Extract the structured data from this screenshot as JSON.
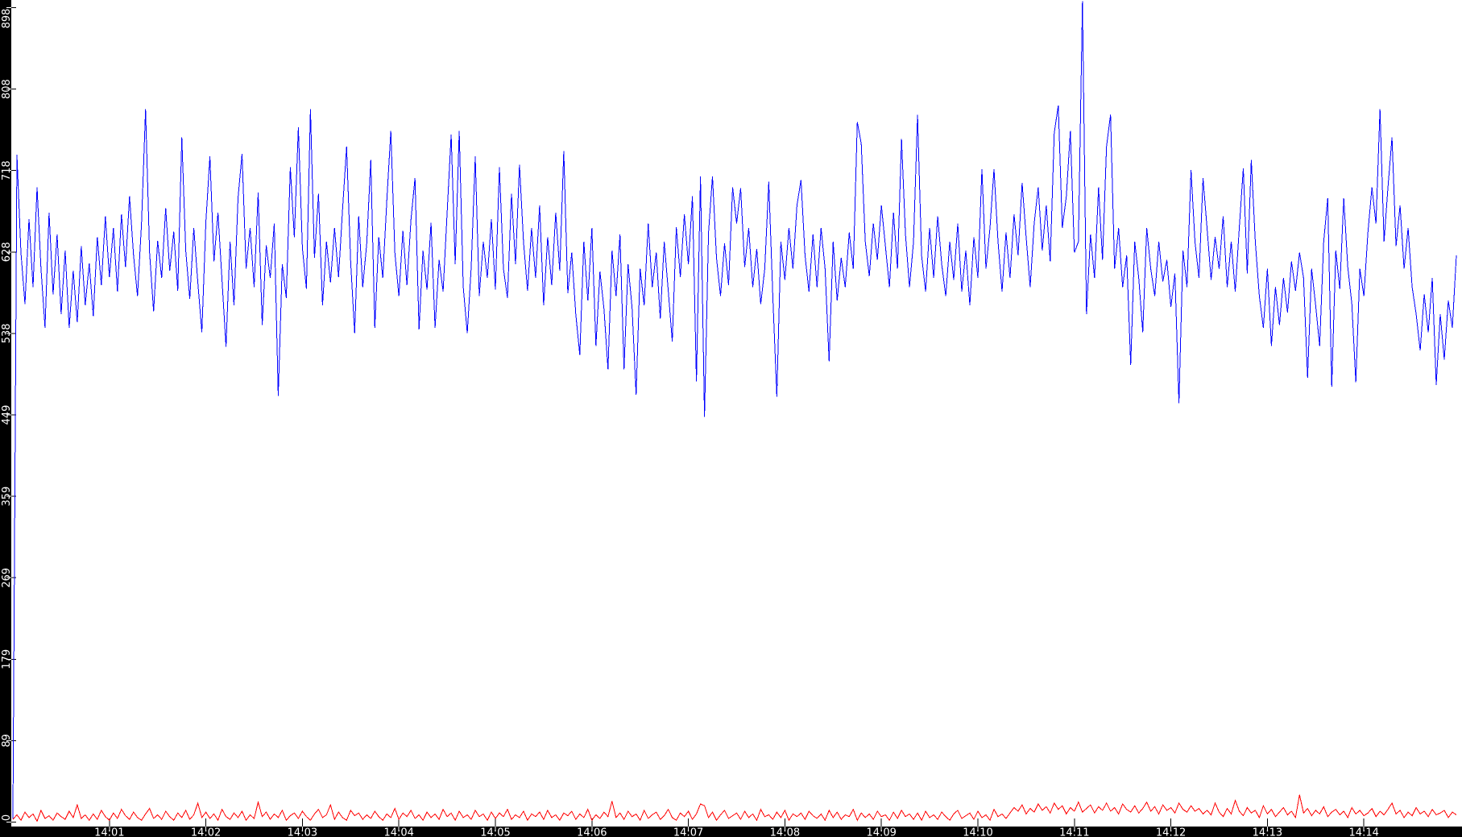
{
  "chart_data": {
    "type": "line",
    "title": "",
    "x_axis": {
      "start_time": "14:00",
      "end_time": "14:15",
      "tick_interval_s": 60,
      "tick_labels": [
        "14:01",
        "14:02",
        "14:03",
        "14:04",
        "14:05",
        "14:06",
        "14:07",
        "14:08",
        "14:09",
        "14:10",
        "14:11",
        "14:12",
        "14:13",
        "14:14"
      ]
    },
    "y_axis": {
      "min": 0,
      "max": 898,
      "tick_labels": [
        "0",
        "89",
        "179",
        "269",
        "359",
        "449",
        "538",
        "628",
        "718",
        "808",
        "898"
      ]
    },
    "grid": false,
    "legend": "none",
    "sample_step_s": 2.5,
    "styles": {
      "background": "#ffffff",
      "axis_band": "#000000",
      "label_color": "#ffffff",
      "tick_outer_color": "#000000",
      "tick_inner_color": "#ffffff"
    },
    "series": [
      {
        "name": "series-blue",
        "color": "#0000ff",
        "values": [
          4,
          736,
          628,
          571,
          665,
          590,
          700,
          610,
          545,
          672,
          582,
          648,
          560,
          630,
          545,
          608,
          551,
          635,
          570,
          616,
          558,
          645,
          592,
          668,
          601,
          655,
          585,
          670,
          612,
          690,
          625,
          580,
          660,
          786,
          628,
          563,
          641,
          600,
          677,
          608,
          651,
          586,
          755,
          630,
          577,
          655,
          595,
          540,
          662,
          734,
          618,
          672,
          598,
          524,
          640,
          570,
          688,
          737,
          610,
          655,
          590,
          694,
          548,
          636,
          600,
          660,
          470,
          615,
          578,
          722,
          645,
          766,
          633,
          588,
          786,
          622,
          693,
          570,
          640,
          595,
          655,
          601,
          676,
          745,
          618,
          539,
          668,
          590,
          638,
          730,
          545,
          645,
          600,
          685,
          762,
          628,
          580,
          652,
          592,
          664,
          710,
          543,
          630,
          587,
          661,
          545,
          620,
          585,
          672,
          758,
          615,
          762,
          590,
          539,
          612,
          734,
          580,
          640,
          600,
          665,
          587,
          722,
          610,
          578,
          693,
          615,
          725,
          640,
          586,
          655,
          600,
          680,
          570,
          645,
          592,
          672,
          608,
          740,
          583,
          628,
          560,
          515,
          640,
          575,
          655,
          525,
          607,
          566,
          499,
          630,
          580,
          648,
          499,
          615,
          567,
          471,
          610,
          570,
          660,
          590,
          628,
          555,
          640,
          586,
          530,
          656,
          601,
          670,
          615,
          690,
          486,
          712,
          447,
          650,
          712,
          622,
          580,
          638,
          592,
          700,
          660,
          699,
          612,
          655,
          590,
          632,
          571,
          610,
          706,
          580,
          469,
          640,
          598,
          655,
          610,
          680,
          708,
          625,
          585,
          648,
          590,
          655,
          610,
          508,
          640,
          575,
          622,
          590,
          650,
          610,
          772,
          748,
          640,
          602,
          660,
          620,
          680,
          635,
          590,
          672,
          610,
          753,
          648,
          590,
          640,
          780,
          625,
          585,
          655,
          600,
          668,
          615,
          580,
          640,
          598,
          660,
          585,
          630,
          570,
          645,
          600,
          720,
          610,
          655,
          720,
          640,
          585,
          650,
          600,
          670,
          625,
          705,
          645,
          590,
          660,
          700,
          630,
          680,
          618,
          760,
          790,
          655,
          690,
          762,
          628,
          640,
          905,
          560,
          648,
          600,
          700,
          620,
          745,
          780,
          610,
          655,
          590,
          625,
          504,
          640,
          600,
          540,
          655,
          610,
          580,
          640,
          596,
          620,
          568,
          605,
          462,
          630,
          590,
          719,
          640,
          600,
          710,
          655,
          598,
          645,
          610,
          668,
          590,
          640,
          585,
          655,
          721,
          605,
          730,
          640,
          580,
          545,
          610,
          525,
          590,
          548,
          600,
          562,
          618,
          586,
          628,
          600,
          490,
          610,
          570,
          525,
          640,
          688,
          480,
          630,
          588,
          688,
          612,
          572,
          485,
          610,
          580,
          650,
          700,
          660,
          786,
          640,
          700,
          755,
          635,
          680,
          610,
          655,
          590,
          560,
          520,
          582,
          540,
          600,
          482,
          560,
          510,
          575,
          545,
          625
        ]
      },
      {
        "name": "series-red",
        "color": "#ff0000",
        "values": [
          3,
          8,
          2,
          11,
          5,
          9,
          1,
          13,
          4,
          7,
          2,
          10,
          6,
          3,
          12,
          5,
          19,
          4,
          8,
          2,
          9,
          3,
          13,
          6,
          2,
          10,
          4,
          14,
          7,
          3,
          11,
          5,
          2,
          9,
          15,
          4,
          8,
          3,
          12,
          6,
          2,
          10,
          5,
          13,
          3,
          8,
          21,
          5,
          11,
          4,
          9,
          2,
          14,
          6,
          3,
          10,
          5,
          12,
          2,
          8,
          4,
          22,
          6,
          11,
          3,
          9,
          5,
          13,
          2,
          7,
          10,
          4,
          12,
          6,
          2,
          9,
          14,
          5,
          8,
          19,
          3,
          11,
          5,
          2,
          13,
          7,
          10,
          3,
          8,
          4,
          12,
          6,
          2,
          9,
          5,
          15,
          3,
          10,
          6,
          13,
          4,
          8,
          2,
          11,
          5,
          9,
          3,
          14,
          6,
          10,
          2,
          12,
          5,
          8,
          3,
          13,
          6,
          9,
          2,
          11,
          4,
          10,
          6,
          14,
          3,
          8,
          5,
          12,
          2,
          9,
          6,
          11,
          3,
          13,
          5,
          8,
          2,
          10,
          7,
          12,
          3,
          9,
          5,
          14,
          2,
          8,
          4,
          11,
          6,
          23,
          5,
          10,
          3,
          12,
          6,
          9,
          2,
          13,
          4,
          8,
          11,
          3,
          7,
          14,
          5,
          2,
          10,
          6,
          12,
          3,
          9,
          20,
          18,
          5,
          11,
          2,
          8,
          13,
          4,
          7,
          10,
          3,
          12,
          5,
          9,
          2,
          14,
          6,
          8,
          3,
          11,
          5,
          13,
          2,
          9,
          6,
          10,
          3,
          12,
          7,
          4,
          9,
          2,
          13,
          5,
          11,
          3,
          8,
          6,
          14,
          2,
          10,
          5,
          9,
          3,
          12,
          6,
          8,
          2,
          11,
          4,
          13,
          6,
          9,
          3,
          10,
          2,
          12,
          5,
          8,
          3,
          11,
          6,
          2,
          9,
          13,
          4,
          7,
          10,
          3,
          12,
          5,
          8,
          2,
          14,
          6,
          9,
          4,
          10,
          16,
          12,
          19,
          9,
          15,
          11,
          20,
          13,
          17,
          10,
          21,
          14,
          18,
          9,
          16,
          12,
          22,
          11,
          15,
          19,
          10,
          17,
          13,
          21,
          12,
          16,
          9,
          20,
          14,
          11,
          18,
          10,
          15,
          22,
          12,
          17,
          9,
          19,
          13,
          16,
          10,
          21,
          14,
          11,
          18,
          12,
          15,
          9,
          13,
          8,
          21,
          11,
          6,
          15,
          9,
          24,
          12,
          7,
          16,
          10,
          13,
          5,
          18,
          9,
          14,
          6,
          11,
          16,
          8,
          12,
          5,
          30,
          10,
          15,
          7,
          13,
          9,
          17,
          6,
          11,
          14,
          8,
          12,
          5,
          16,
          9,
          13,
          7,
          10,
          15,
          6,
          12,
          8,
          14,
          21,
          9,
          13,
          5,
          11,
          7,
          16,
          9,
          12,
          6,
          14,
          8,
          10,
          13,
          5,
          11,
          8
        ]
      }
    ]
  }
}
